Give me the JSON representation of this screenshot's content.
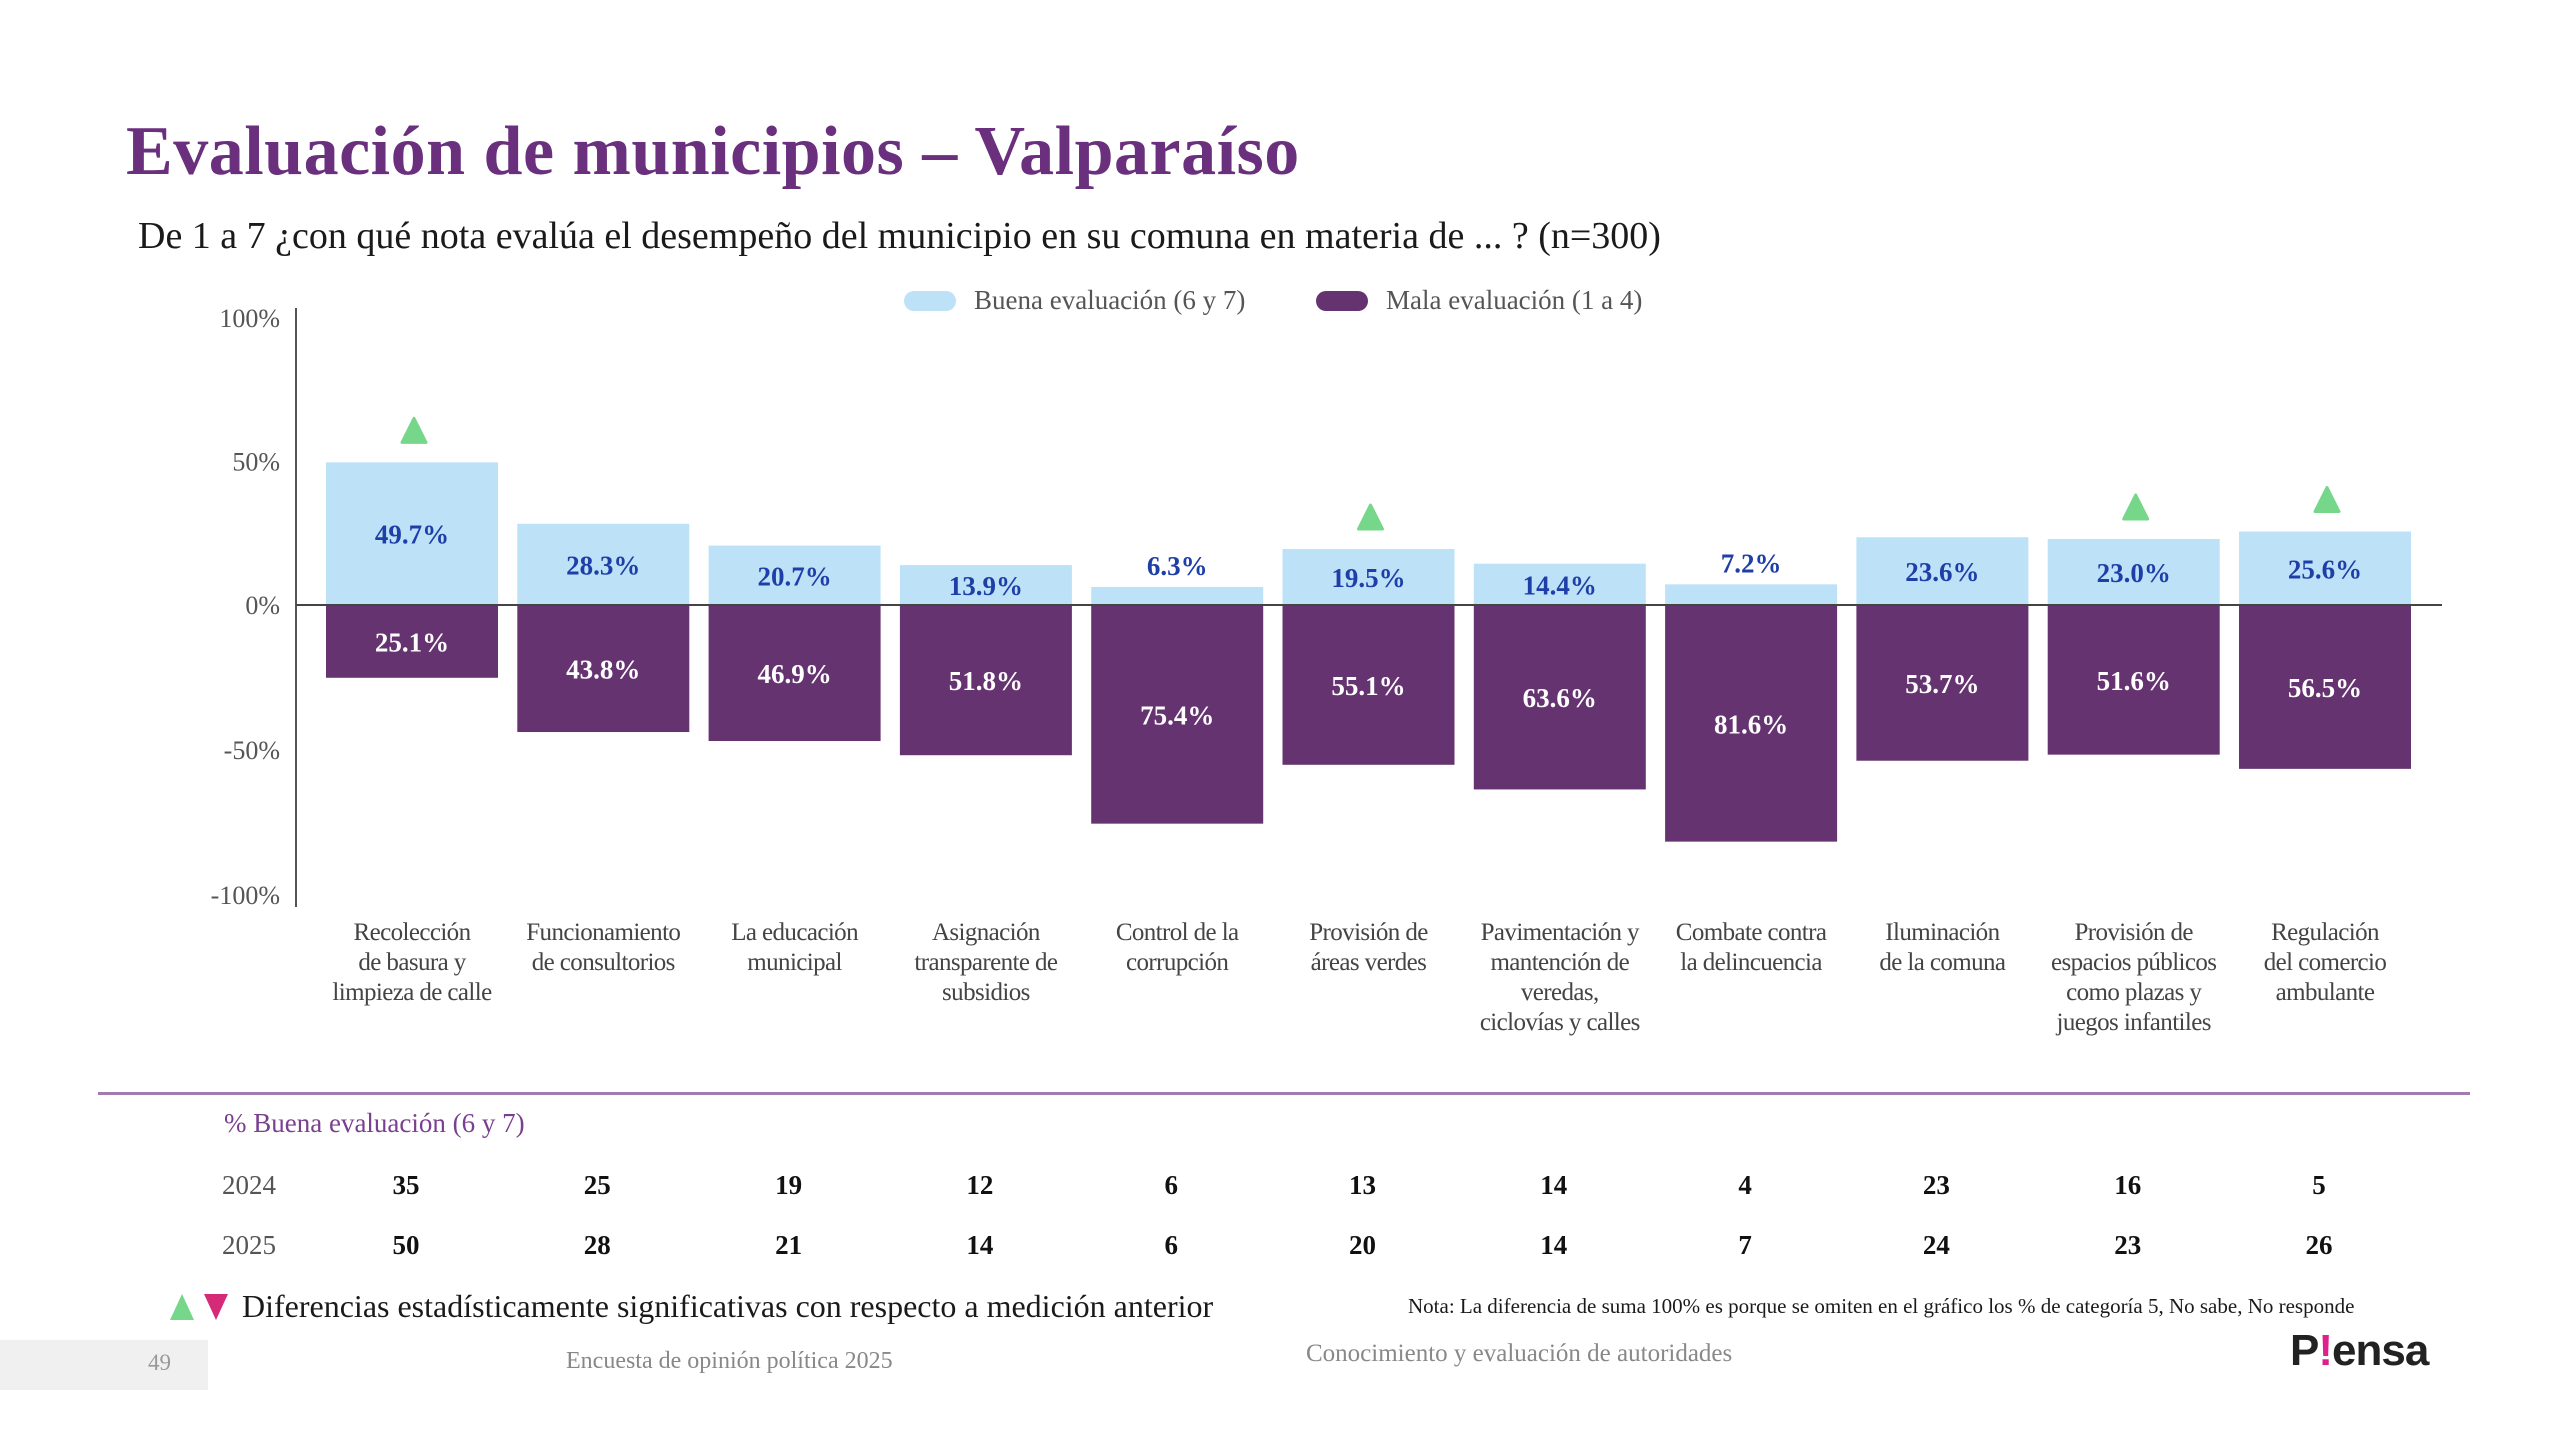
{
  "title": "Evaluación de municipios – Valparaíso",
  "subtitle": "De 1 a 7 ¿con qué nota evalúa el desempeño del municipio en su comuna en materia de ... ? (n=300)",
  "colors": {
    "title": "#6a2f7d",
    "good": "#bde2f8",
    "bad": "#663371",
    "good_label": "#1f3fa8",
    "bad_label": "#ffffff",
    "up_marker": "#76d68a",
    "down_marker": "#d42a78",
    "logo_accent": "#e0208a"
  },
  "chart_data": {
    "type": "bar",
    "title": "Evaluación de municipios – Valparaíso",
    "xlabel": "",
    "ylabel": "",
    "ylim": [
      -100,
      100
    ],
    "yticks": [
      "100%",
      "50%",
      "0%",
      "-50%",
      "-100%"
    ],
    "ytick_values": [
      100,
      50,
      0,
      -50,
      -100
    ],
    "legend_position": "top-center",
    "grid": false,
    "categories": [
      "Recolección de basura y limpieza de calle",
      "Funcionamiento de consultorios",
      "La educación municipal",
      "Asignación transparente de subsidios",
      "Control de la corrupción",
      "Provisión de áreas verdes",
      "Pavimentación y mantención de veredas, ciclovías y calles",
      "Combate contra la delincuencia",
      "Iluminación de la comuna",
      "Provisión de espacios públicos como plazas y juegos infantiles",
      "Regulación del comercio ambulante"
    ],
    "category_lines": [
      [
        "Recolección",
        "de basura y",
        "limpieza de calle"
      ],
      [
        "Funcionamiento",
        "de consultorios"
      ],
      [
        "La educación",
        "municipal"
      ],
      [
        "Asignación",
        "transparente de",
        "subsidios"
      ],
      [
        "Control de la",
        "corrupción"
      ],
      [
        "Provisión de",
        "áreas verdes"
      ],
      [
        "Pavimentación y",
        "mantención de",
        "veredas,",
        "ciclovías y calles"
      ],
      [
        "Combate contra",
        "la delincuencia"
      ],
      [
        "Iluminación",
        "de la comuna"
      ],
      [
        "Provisión de",
        "espacios públicos",
        "como plazas y",
        "juegos infantiles"
      ],
      [
        "Regulación",
        "del comercio",
        "ambulante"
      ]
    ],
    "series": [
      {
        "name": "Buena evaluación (6 y 7)",
        "values": [
          49.7,
          28.3,
          20.7,
          13.9,
          6.3,
          19.5,
          14.4,
          7.2,
          23.6,
          23.0,
          25.6
        ],
        "labels": [
          "49.7%",
          "28.3%",
          "20.7%",
          "13.9%",
          "6.3%",
          "19.5%",
          "14.4%",
          "7.2%",
          "23.6%",
          "23.0%",
          "25.6%"
        ]
      },
      {
        "name": "Mala evaluación (1 a 4)",
        "values": [
          -25.1,
          -43.8,
          -46.9,
          -51.8,
          -75.4,
          -55.1,
          -63.6,
          -81.6,
          -53.7,
          -51.6,
          -56.5
        ],
        "labels": [
          "25.1%",
          "43.8%",
          "46.9%",
          "51.8%",
          "75.4%",
          "55.1%",
          "63.6%",
          "81.6%",
          "53.7%",
          "51.6%",
          "56.5%"
        ]
      }
    ],
    "significance": [
      "up",
      "",
      "",
      "",
      "",
      "up",
      "",
      "",
      "",
      "up",
      "up"
    ]
  },
  "table": {
    "title": "% Buena evaluación (6 y 7)",
    "rows": [
      {
        "year": "2024",
        "values": [
          "35",
          "25",
          "19",
          "12",
          "6",
          "13",
          "14",
          "4",
          "23",
          "16",
          "5"
        ]
      },
      {
        "year": "2025",
        "values": [
          "50",
          "28",
          "21",
          "14",
          "6",
          "20",
          "14",
          "7",
          "24",
          "23",
          "26"
        ]
      }
    ]
  },
  "significance_legend": "Diferencias estadísticamente significativas con respecto a medición anterior",
  "note": "Nota: La diferencia de suma 100% es porque se omiten en el gráfico los % de categoría 5, No sabe, No responde",
  "footer": {
    "page_number": "49",
    "survey": "Encuesta de opinión política 2025",
    "section": "Conocimiento y evaluación de autoridades",
    "logo_prefix": "P",
    "logo_bang": "!",
    "logo_suffix": "ensa"
  }
}
